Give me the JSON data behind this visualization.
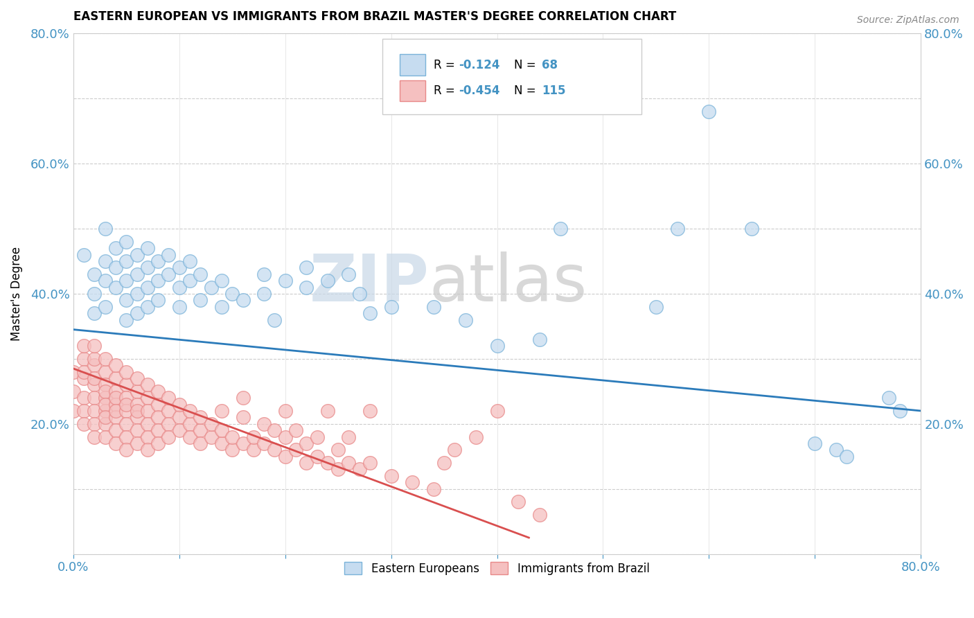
{
  "title": "EASTERN EUROPEAN VS IMMIGRANTS FROM BRAZIL MASTER'S DEGREE CORRELATION CHART",
  "source": "Source: ZipAtlas.com",
  "ylabel": "Master's Degree",
  "xmin": 0.0,
  "xmax": 0.8,
  "ymin": 0.0,
  "ymax": 0.8,
  "blue_R": -0.124,
  "blue_N": 68,
  "pink_R": -0.454,
  "pink_N": 115,
  "watermark_zip": "ZIP",
  "watermark_atlas": "atlas",
  "legend_label_blue": "Eastern Europeans",
  "legend_label_pink": "Immigrants from Brazil",
  "blue_scatter": [
    [
      0.01,
      0.46
    ],
    [
      0.02,
      0.43
    ],
    [
      0.02,
      0.4
    ],
    [
      0.02,
      0.37
    ],
    [
      0.03,
      0.5
    ],
    [
      0.03,
      0.45
    ],
    [
      0.03,
      0.42
    ],
    [
      0.03,
      0.38
    ],
    [
      0.04,
      0.47
    ],
    [
      0.04,
      0.44
    ],
    [
      0.04,
      0.41
    ],
    [
      0.05,
      0.48
    ],
    [
      0.05,
      0.45
    ],
    [
      0.05,
      0.42
    ],
    [
      0.05,
      0.39
    ],
    [
      0.05,
      0.36
    ],
    [
      0.06,
      0.46
    ],
    [
      0.06,
      0.43
    ],
    [
      0.06,
      0.4
    ],
    [
      0.06,
      0.37
    ],
    [
      0.07,
      0.47
    ],
    [
      0.07,
      0.44
    ],
    [
      0.07,
      0.41
    ],
    [
      0.07,
      0.38
    ],
    [
      0.08,
      0.45
    ],
    [
      0.08,
      0.42
    ],
    [
      0.08,
      0.39
    ],
    [
      0.09,
      0.46
    ],
    [
      0.09,
      0.43
    ],
    [
      0.1,
      0.44
    ],
    [
      0.1,
      0.41
    ],
    [
      0.1,
      0.38
    ],
    [
      0.11,
      0.45
    ],
    [
      0.11,
      0.42
    ],
    [
      0.12,
      0.43
    ],
    [
      0.12,
      0.39
    ],
    [
      0.13,
      0.41
    ],
    [
      0.14,
      0.42
    ],
    [
      0.14,
      0.38
    ],
    [
      0.15,
      0.4
    ],
    [
      0.16,
      0.39
    ],
    [
      0.18,
      0.43
    ],
    [
      0.18,
      0.4
    ],
    [
      0.19,
      0.36
    ],
    [
      0.2,
      0.42
    ],
    [
      0.22,
      0.44
    ],
    [
      0.22,
      0.41
    ],
    [
      0.24,
      0.42
    ],
    [
      0.26,
      0.43
    ],
    [
      0.27,
      0.4
    ],
    [
      0.28,
      0.37
    ],
    [
      0.3,
      0.38
    ],
    [
      0.34,
      0.38
    ],
    [
      0.37,
      0.36
    ],
    [
      0.4,
      0.32
    ],
    [
      0.44,
      0.33
    ],
    [
      0.46,
      0.5
    ],
    [
      0.55,
      0.38
    ],
    [
      0.57,
      0.5
    ],
    [
      0.6,
      0.68
    ],
    [
      0.64,
      0.5
    ],
    [
      0.7,
      0.17
    ],
    [
      0.72,
      0.16
    ],
    [
      0.73,
      0.15
    ],
    [
      0.77,
      0.24
    ],
    [
      0.78,
      0.22
    ]
  ],
  "pink_scatter": [
    [
      0.0,
      0.28
    ],
    [
      0.0,
      0.25
    ],
    [
      0.0,
      0.22
    ],
    [
      0.01,
      0.3
    ],
    [
      0.01,
      0.27
    ],
    [
      0.01,
      0.24
    ],
    [
      0.01,
      0.22
    ],
    [
      0.01,
      0.2
    ],
    [
      0.01,
      0.28
    ],
    [
      0.01,
      0.32
    ],
    [
      0.02,
      0.29
    ],
    [
      0.02,
      0.26
    ],
    [
      0.02,
      0.24
    ],
    [
      0.02,
      0.22
    ],
    [
      0.02,
      0.2
    ],
    [
      0.02,
      0.18
    ],
    [
      0.02,
      0.3
    ],
    [
      0.02,
      0.32
    ],
    [
      0.02,
      0.27
    ],
    [
      0.03,
      0.28
    ],
    [
      0.03,
      0.26
    ],
    [
      0.03,
      0.24
    ],
    [
      0.03,
      0.22
    ],
    [
      0.03,
      0.2
    ],
    [
      0.03,
      0.18
    ],
    [
      0.03,
      0.3
    ],
    [
      0.03,
      0.25
    ],
    [
      0.03,
      0.23
    ],
    [
      0.03,
      0.21
    ],
    [
      0.04,
      0.27
    ],
    [
      0.04,
      0.25
    ],
    [
      0.04,
      0.23
    ],
    [
      0.04,
      0.21
    ],
    [
      0.04,
      0.19
    ],
    [
      0.04,
      0.17
    ],
    [
      0.04,
      0.29
    ],
    [
      0.04,
      0.24
    ],
    [
      0.04,
      0.22
    ],
    [
      0.05,
      0.26
    ],
    [
      0.05,
      0.24
    ],
    [
      0.05,
      0.22
    ],
    [
      0.05,
      0.2
    ],
    [
      0.05,
      0.18
    ],
    [
      0.05,
      0.16
    ],
    [
      0.05,
      0.28
    ],
    [
      0.05,
      0.23
    ],
    [
      0.06,
      0.25
    ],
    [
      0.06,
      0.23
    ],
    [
      0.06,
      0.21
    ],
    [
      0.06,
      0.19
    ],
    [
      0.06,
      0.17
    ],
    [
      0.06,
      0.27
    ],
    [
      0.06,
      0.22
    ],
    [
      0.07,
      0.24
    ],
    [
      0.07,
      0.22
    ],
    [
      0.07,
      0.2
    ],
    [
      0.07,
      0.18
    ],
    [
      0.07,
      0.16
    ],
    [
      0.07,
      0.26
    ],
    [
      0.08,
      0.23
    ],
    [
      0.08,
      0.21
    ],
    [
      0.08,
      0.19
    ],
    [
      0.08,
      0.17
    ],
    [
      0.08,
      0.25
    ],
    [
      0.09,
      0.22
    ],
    [
      0.09,
      0.2
    ],
    [
      0.09,
      0.18
    ],
    [
      0.09,
      0.24
    ],
    [
      0.1,
      0.21
    ],
    [
      0.1,
      0.19
    ],
    [
      0.1,
      0.23
    ],
    [
      0.11,
      0.2
    ],
    [
      0.11,
      0.18
    ],
    [
      0.11,
      0.22
    ],
    [
      0.12,
      0.19
    ],
    [
      0.12,
      0.17
    ],
    [
      0.12,
      0.21
    ],
    [
      0.13,
      0.18
    ],
    [
      0.13,
      0.2
    ],
    [
      0.14,
      0.17
    ],
    [
      0.14,
      0.19
    ],
    [
      0.14,
      0.22
    ],
    [
      0.15,
      0.16
    ],
    [
      0.15,
      0.18
    ],
    [
      0.16,
      0.17
    ],
    [
      0.16,
      0.21
    ],
    [
      0.16,
      0.24
    ],
    [
      0.17,
      0.16
    ],
    [
      0.17,
      0.18
    ],
    [
      0.18,
      0.17
    ],
    [
      0.18,
      0.2
    ],
    [
      0.19,
      0.16
    ],
    [
      0.19,
      0.19
    ],
    [
      0.2,
      0.15
    ],
    [
      0.2,
      0.18
    ],
    [
      0.2,
      0.22
    ],
    [
      0.21,
      0.16
    ],
    [
      0.21,
      0.19
    ],
    [
      0.22,
      0.14
    ],
    [
      0.22,
      0.17
    ],
    [
      0.23,
      0.15
    ],
    [
      0.23,
      0.18
    ],
    [
      0.24,
      0.14
    ],
    [
      0.24,
      0.22
    ],
    [
      0.25,
      0.13
    ],
    [
      0.25,
      0.16
    ],
    [
      0.26,
      0.14
    ],
    [
      0.26,
      0.18
    ],
    [
      0.27,
      0.13
    ],
    [
      0.28,
      0.14
    ],
    [
      0.28,
      0.22
    ],
    [
      0.3,
      0.12
    ],
    [
      0.32,
      0.11
    ],
    [
      0.34,
      0.1
    ],
    [
      0.35,
      0.14
    ],
    [
      0.36,
      0.16
    ],
    [
      0.38,
      0.18
    ],
    [
      0.4,
      0.22
    ],
    [
      0.42,
      0.08
    ],
    [
      0.44,
      0.06
    ]
  ]
}
